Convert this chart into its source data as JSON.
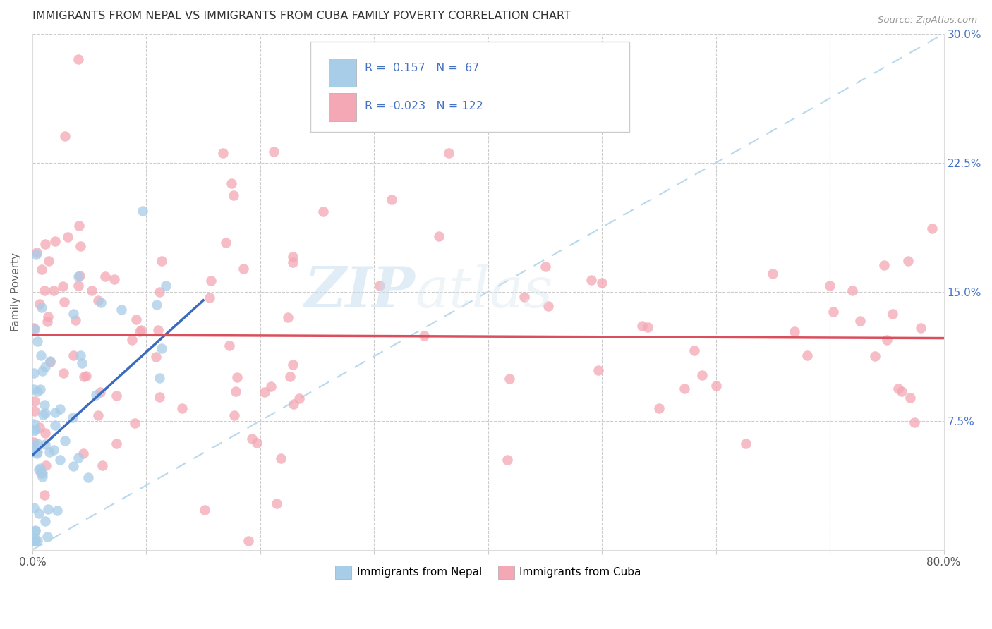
{
  "title": "IMMIGRANTS FROM NEPAL VS IMMIGRANTS FROM CUBA FAMILY POVERTY CORRELATION CHART",
  "source": "Source: ZipAtlas.com",
  "ylabel": "Family Poverty",
  "xlim": [
    0.0,
    0.8
  ],
  "ylim": [
    0.0,
    0.3
  ],
  "xticks": [
    0.0,
    0.1,
    0.2,
    0.3,
    0.4,
    0.5,
    0.6,
    0.7,
    0.8
  ],
  "xticklabels": [
    "0.0%",
    "",
    "",
    "",
    "",
    "",
    "",
    "",
    "80.0%"
  ],
  "ytick_positions": [
    0.0,
    0.075,
    0.15,
    0.225,
    0.3
  ],
  "ytick_labels_right": [
    "",
    "7.5%",
    "15.0%",
    "22.5%",
    "30.0%"
  ],
  "nepal_R": 0.157,
  "nepal_N": 67,
  "cuba_R": -0.023,
  "cuba_N": 122,
  "nepal_color": "#a8cde8",
  "cuba_color": "#f4a7b4",
  "nepal_line_color": "#3a6bbf",
  "cuba_line_color": "#d94f5c",
  "diag_line_color": "#b8d8ee",
  "watermark_zip": "ZIP",
  "watermark_atlas": "atlas",
  "legend_nepal_label": "Immigrants from Nepal",
  "legend_cuba_label": "Immigrants from Cuba",
  "background_color": "#ffffff",
  "grid_color": "#cccccc",
  "title_color": "#333333",
  "axis_label_color": "#666666",
  "tick_color_right": "#4472c4",
  "nepal_line_start_y": 0.055,
  "nepal_line_end_y": 0.145,
  "nepal_line_start_x": 0.0,
  "nepal_line_end_x": 0.15,
  "cuba_line_start_y": 0.125,
  "cuba_line_end_y": 0.123,
  "cuba_line_start_x": 0.0,
  "cuba_line_end_x": 0.8
}
